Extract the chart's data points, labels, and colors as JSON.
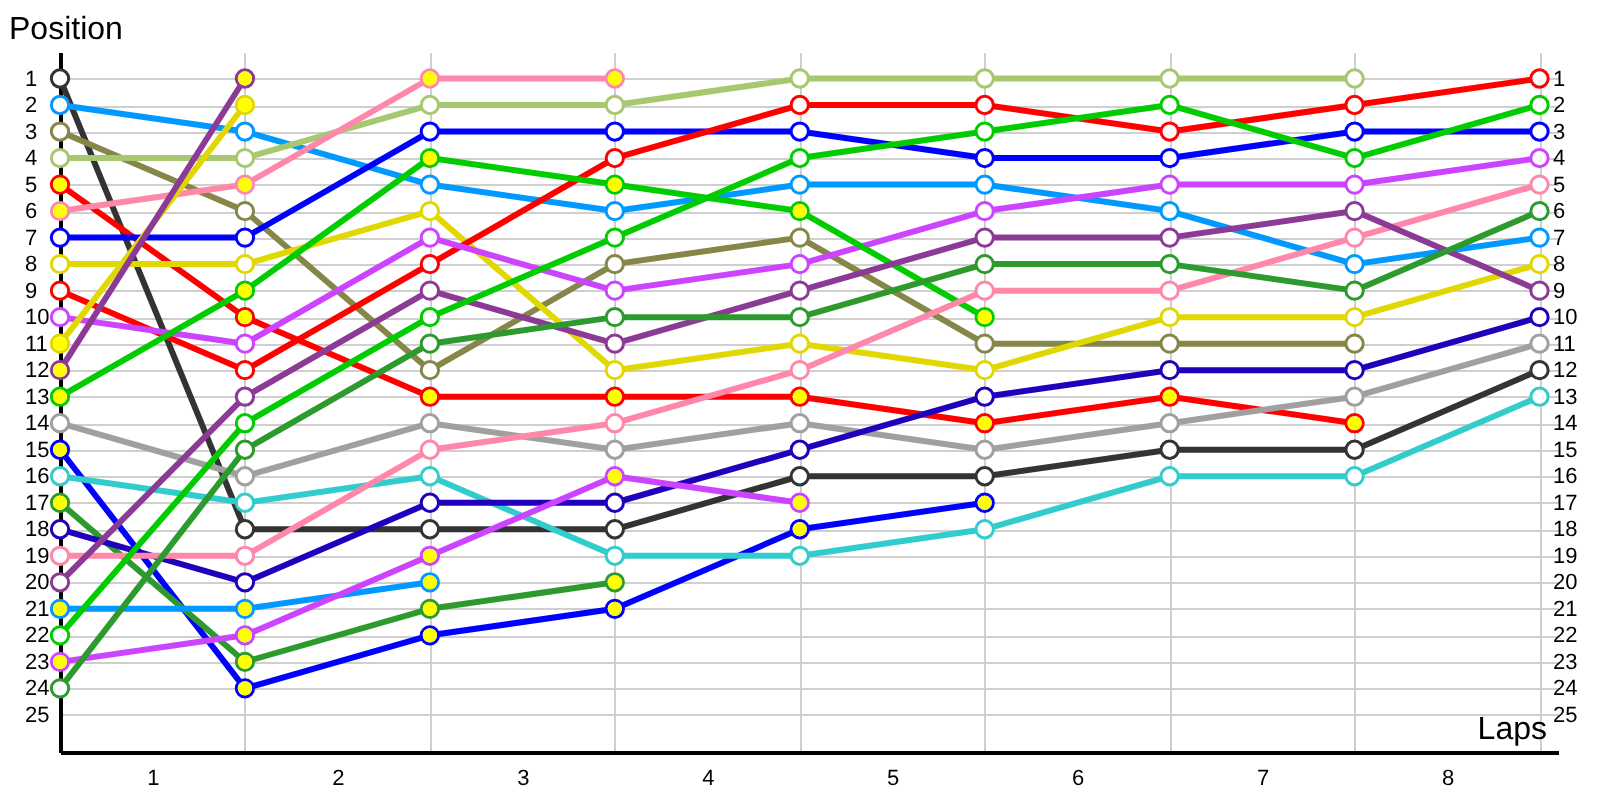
{
  "chart_data": {
    "type": "line",
    "ylabel": "Position",
    "xlabel": "Laps",
    "x": [
      0,
      1,
      2,
      3,
      4,
      5,
      6,
      7,
      8
    ],
    "xlim": [
      0,
      8.1
    ],
    "xticks": [
      {
        "value": 0.5,
        "label": "1"
      },
      {
        "value": 1,
        "label": null
      },
      {
        "value": 1.5,
        "label": "2"
      },
      {
        "value": 2,
        "label": null
      },
      {
        "value": 2.5,
        "label": "3"
      },
      {
        "value": 3,
        "label": null
      },
      {
        "value": 3.5,
        "label": "4"
      },
      {
        "value": 4,
        "label": null
      },
      {
        "value": 4.5,
        "label": "5"
      },
      {
        "value": 5,
        "label": null
      },
      {
        "value": 5.5,
        "label": "6"
      },
      {
        "value": 6,
        "label": null
      },
      {
        "value": 6.5,
        "label": "7"
      },
      {
        "value": 7,
        "label": null
      },
      {
        "value": 7.5,
        "label": "8"
      },
      {
        "value": 8,
        "label": null
      }
    ],
    "ylim": [
      26.4,
      0
    ],
    "yticks": [
      1,
      2,
      3,
      4,
      5,
      6,
      7,
      8,
      9,
      10,
      11,
      12,
      13,
      14,
      15,
      16,
      17,
      18,
      19,
      20,
      21,
      22,
      23,
      24,
      25
    ],
    "y2lim": [
      26.4,
      0
    ],
    "y2ticks": [
      1,
      2,
      3,
      4,
      5,
      6,
      7,
      8,
      9,
      10,
      11,
      12,
      13,
      14,
      15,
      16,
      17,
      18,
      19,
      20,
      21,
      22,
      23,
      24,
      25
    ],
    "grid": true,
    "marker": "circle",
    "series": [
      {
        "color": "#333333",
        "values": [
          1,
          18,
          18,
          18,
          16,
          16,
          15,
          15,
          12
        ]
      },
      {
        "color": "#0099ff",
        "values": [
          2,
          3,
          5,
          6,
          5,
          5,
          6,
          8,
          7
        ]
      },
      {
        "color": "#868648",
        "values": [
          3,
          6,
          12,
          8,
          7,
          11,
          11,
          11,
          null
        ]
      },
      {
        "color": "#a8c870",
        "values": [
          4,
          4,
          2,
          2,
          1,
          1,
          1,
          1,
          null
        ]
      },
      {
        "color": "#ff0000",
        "values": [
          5,
          10,
          13,
          13,
          13,
          14,
          13,
          14,
          null
        ]
      },
      {
        "color": "#ff88aa",
        "values": [
          6,
          5,
          1,
          1,
          null,
          null,
          null,
          null,
          null
        ]
      },
      {
        "color": "#0000ff",
        "values": [
          7,
          7,
          3,
          3,
          3,
          4,
          4,
          3,
          3
        ]
      },
      {
        "color": "#e0d800",
        "values": [
          8,
          8,
          6,
          12,
          11,
          12,
          10,
          10,
          8
        ]
      },
      {
        "color": "#ff0000",
        "values": [
          9,
          12,
          8,
          4,
          2,
          2,
          3,
          2,
          1
        ]
      },
      {
        "color": "#cc44ff",
        "values": [
          10,
          11,
          7,
          9,
          8,
          6,
          5,
          5,
          4
        ]
      },
      {
        "color": "#e0d800",
        "values": [
          11,
          2,
          null,
          null,
          null,
          null,
          null,
          null,
          null
        ]
      },
      {
        "color": "#8b3a96",
        "values": [
          12,
          1,
          null,
          null,
          null,
          null,
          null,
          null,
          null
        ]
      },
      {
        "color": "#00cc00",
        "values": [
          13,
          9,
          4,
          5,
          6,
          10,
          null,
          null,
          null
        ]
      },
      {
        "color": "#a0a0a0",
        "values": [
          14,
          16,
          14,
          15,
          14,
          15,
          14,
          13,
          11
        ]
      },
      {
        "color": "#0000ff",
        "values": [
          15,
          24,
          22,
          21,
          18,
          17,
          null,
          null,
          null
        ]
      },
      {
        "color": "#33cccc",
        "values": [
          16,
          17,
          16,
          19,
          19,
          18,
          16,
          16,
          13
        ]
      },
      {
        "color": "#2c9a2c",
        "values": [
          17,
          23,
          21,
          20,
          null,
          null,
          null,
          null,
          null
        ]
      },
      {
        "color": "#2200bb",
        "values": [
          18,
          20,
          17,
          17,
          15,
          13,
          12,
          12,
          10
        ]
      },
      {
        "color": "#ff88aa",
        "values": [
          19,
          19,
          15,
          14,
          12,
          9,
          9,
          7,
          5
        ]
      },
      {
        "color": "#8b3a96",
        "values": [
          20,
          13,
          9,
          11,
          9,
          7,
          7,
          6,
          9
        ]
      },
      {
        "color": "#0099ff",
        "values": [
          21,
          21,
          20,
          null,
          null,
          null,
          null,
          null,
          null
        ]
      },
      {
        "color": "#00cc00",
        "values": [
          22,
          14,
          10,
          7,
          4,
          3,
          2,
          4,
          2
        ]
      },
      {
        "color": "#cc44ff",
        "values": [
          23,
          22,
          19,
          16,
          17,
          null,
          null,
          null,
          null
        ]
      },
      {
        "color": "#2c9a2c",
        "values": [
          24,
          15,
          11,
          10,
          10,
          8,
          8,
          9,
          6
        ]
      },
      {
        "type": "scatter",
        "color": "#ffff00",
        "x": [
          0,
          1,
          2,
          3,
          4,
          5,
          6,
          7,
          0,
          1,
          2,
          3,
          0,
          1,
          0,
          1,
          0,
          1,
          2,
          3,
          4,
          5,
          0,
          1,
          2,
          3,
          4,
          5,
          0,
          1,
          2,
          3,
          0,
          1,
          2,
          0,
          1,
          2,
          3,
          4
        ],
        "values": [
          5,
          10,
          13,
          13,
          13,
          14,
          13,
          14,
          6,
          5,
          1,
          1,
          11,
          2,
          12,
          1,
          13,
          9,
          4,
          5,
          6,
          10,
          15,
          24,
          22,
          21,
          18,
          17,
          17,
          23,
          21,
          20,
          21,
          21,
          20,
          23,
          22,
          19,
          16,
          17
        ]
      }
    ]
  }
}
